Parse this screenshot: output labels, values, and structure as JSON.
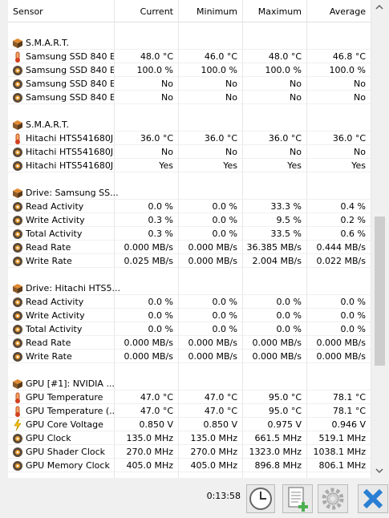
{
  "header": {
    "columns": [
      "Sensor",
      "Current",
      "Minimum",
      "Maximum",
      "Average"
    ]
  },
  "groups": [
    {
      "title": "S.M.A.R.T.",
      "rows": [
        {
          "icon": "thermometer",
          "label": "Samsung SSD 840 E...",
          "current": "48.0 °C",
          "minimum": "46.0 °C",
          "maximum": "48.0 °C",
          "average": "46.8 °C"
        },
        {
          "icon": "sensor",
          "label": "Samsung SSD 840 E...",
          "current": "100.0 %",
          "minimum": "100.0 %",
          "maximum": "100.0 %",
          "average": "100.0 %"
        },
        {
          "icon": "sensor",
          "label": "Samsung SSD 840 E...",
          "current": "No",
          "minimum": "No",
          "maximum": "No",
          "average": "No"
        },
        {
          "icon": "sensor",
          "label": "Samsung SSD 840 E...",
          "current": "No",
          "minimum": "No",
          "maximum": "No",
          "average": "No"
        }
      ]
    },
    {
      "title": "S.M.A.R.T.",
      "rows": [
        {
          "icon": "thermometer",
          "label": "Hitachi HTS541680J...",
          "current": "36.0 °C",
          "minimum": "36.0 °C",
          "maximum": "36.0 °C",
          "average": "36.0 °C"
        },
        {
          "icon": "sensor",
          "label": "Hitachi HTS541680J...",
          "current": "No",
          "minimum": "No",
          "maximum": "No",
          "average": "No"
        },
        {
          "icon": "sensor",
          "label": "Hitachi HTS541680J...",
          "current": "Yes",
          "minimum": "Yes",
          "maximum": "Yes",
          "average": "Yes"
        }
      ]
    },
    {
      "title": "Drive: Samsung SS...",
      "rows": [
        {
          "icon": "sensor",
          "label": "Read Activity",
          "current": "0.0 %",
          "minimum": "0.0 %",
          "maximum": "33.3 %",
          "average": "0.4 %"
        },
        {
          "icon": "sensor",
          "label": "Write Activity",
          "current": "0.3 %",
          "minimum": "0.0 %",
          "maximum": "9.5 %",
          "average": "0.2 %"
        },
        {
          "icon": "sensor",
          "label": "Total Activity",
          "current": "0.3 %",
          "minimum": "0.0 %",
          "maximum": "33.5 %",
          "average": "0.6 %"
        },
        {
          "icon": "sensor",
          "label": "Read Rate",
          "current": "0.000 MB/s",
          "minimum": "0.000 MB/s",
          "maximum": "36.385 MB/s",
          "average": "0.444 MB/s"
        },
        {
          "icon": "sensor",
          "label": "Write Rate",
          "current": "0.025 MB/s",
          "minimum": "0.000 MB/s",
          "maximum": "2.004 MB/s",
          "average": "0.022 MB/s"
        }
      ]
    },
    {
      "title": "Drive: Hitachi HTS5...",
      "rows": [
        {
          "icon": "sensor",
          "label": "Read Activity",
          "current": "0.0 %",
          "minimum": "0.0 %",
          "maximum": "0.0 %",
          "average": "0.0 %"
        },
        {
          "icon": "sensor",
          "label": "Write Activity",
          "current": "0.0 %",
          "minimum": "0.0 %",
          "maximum": "0.0 %",
          "average": "0.0 %"
        },
        {
          "icon": "sensor",
          "label": "Total Activity",
          "current": "0.0 %",
          "minimum": "0.0 %",
          "maximum": "0.0 %",
          "average": "0.0 %"
        },
        {
          "icon": "sensor",
          "label": "Read Rate",
          "current": "0.000 MB/s",
          "minimum": "0.000 MB/s",
          "maximum": "0.000 MB/s",
          "average": "0.000 MB/s"
        },
        {
          "icon": "sensor",
          "label": "Write Rate",
          "current": "0.000 MB/s",
          "minimum": "0.000 MB/s",
          "maximum": "0.000 MB/s",
          "average": "0.000 MB/s"
        }
      ]
    },
    {
      "title": "GPU [#1]: NVIDIA ...",
      "rows": [
        {
          "icon": "thermometer",
          "label": "GPU Temperature",
          "current": "47.0 °C",
          "minimum": "47.0 °C",
          "maximum": "95.0 °C",
          "average": "78.1 °C"
        },
        {
          "icon": "thermometer",
          "label": "GPU Temperature (...",
          "current": "47.0 °C",
          "minimum": "47.0 °C",
          "maximum": "95.0 °C",
          "average": "78.1 °C"
        },
        {
          "icon": "bolt",
          "label": "GPU Core Voltage",
          "current": "0.850 V",
          "minimum": "0.850 V",
          "maximum": "0.975 V",
          "average": "0.946 V"
        },
        {
          "icon": "sensor",
          "label": "GPU Clock",
          "current": "135.0 MHz",
          "minimum": "135.0 MHz",
          "maximum": "661.5 MHz",
          "average": "519.1 MHz"
        },
        {
          "icon": "sensor",
          "label": "GPU Shader Clock",
          "current": "270.0 MHz",
          "minimum": "270.0 MHz",
          "maximum": "1323.0 MHz",
          "average": "1038.1 MHz"
        },
        {
          "icon": "sensor",
          "label": "GPU Memory Clock",
          "current": "405.0 MHz",
          "minimum": "405.0 MHz",
          "maximum": "896.8 MHz",
          "average": "806.1 MHz"
        }
      ]
    }
  ],
  "footer": {
    "time": "0:13:58"
  }
}
